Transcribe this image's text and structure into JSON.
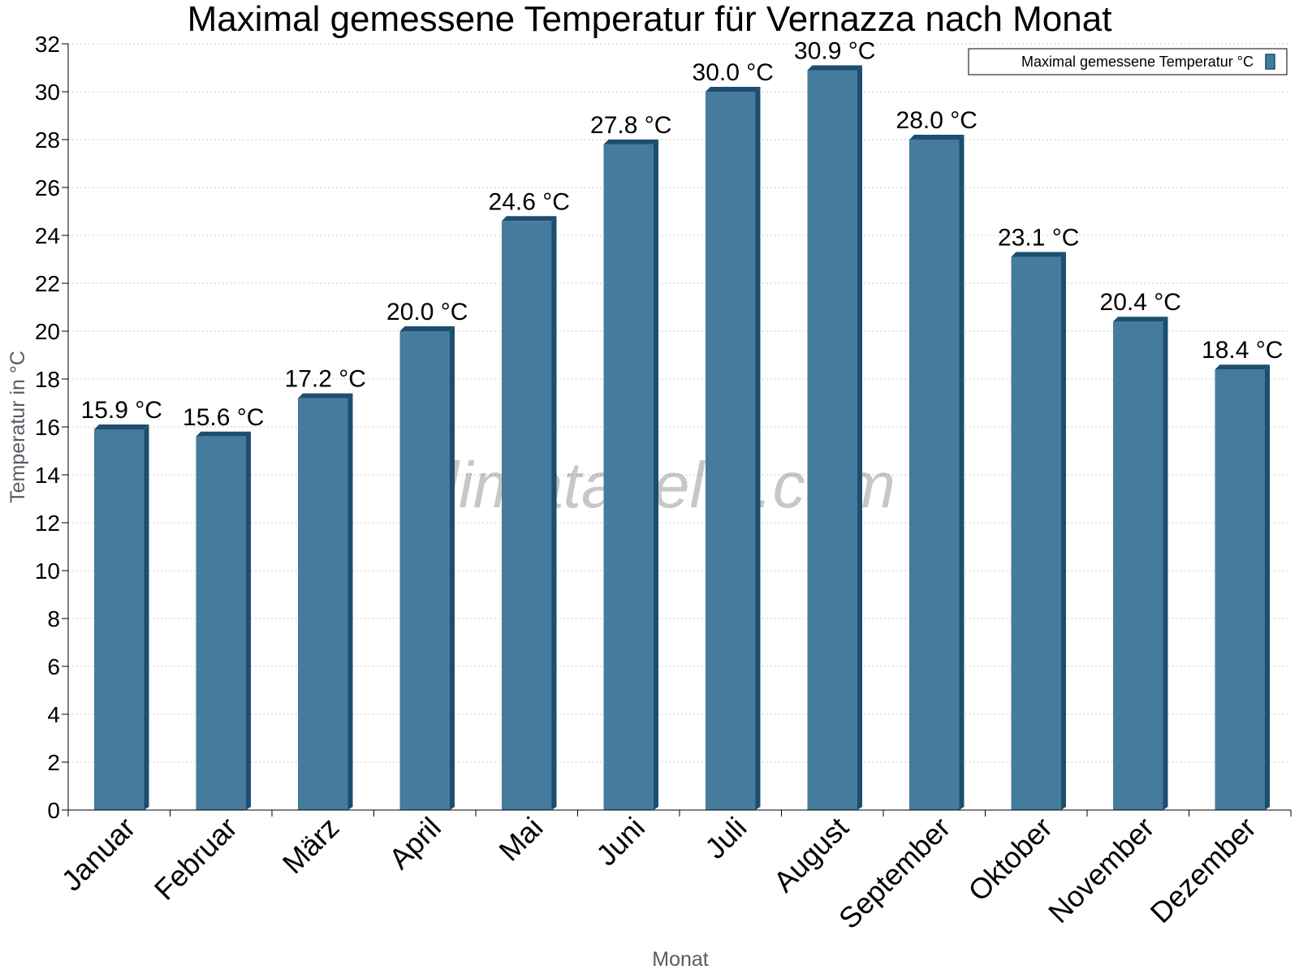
{
  "chart_data": {
    "type": "bar",
    "title": "Maximal gemessene Temperatur für Vernazza nach Monat",
    "xlabel": "Monat",
    "ylabel": "Temperatur in °C",
    "categories": [
      "Januar",
      "Februar",
      "März",
      "April",
      "Mai",
      "Juni",
      "Juli",
      "August",
      "September",
      "Oktober",
      "November",
      "Dezember"
    ],
    "series": [
      {
        "name": "Maximal gemessene Temperatur °C",
        "values": [
          15.9,
          15.6,
          17.2,
          20.0,
          24.6,
          27.8,
          30.0,
          30.9,
          28.0,
          23.1,
          20.4,
          18.4
        ],
        "labels": [
          "15.9 °C",
          "15.6 °C",
          "17.2 °C",
          "20.0 °C",
          "24.6 °C",
          "27.8 °C",
          "30.0 °C",
          "30.9 °C",
          "28.0 °C",
          "23.1 °C",
          "20.4 °C",
          "18.4 °C"
        ]
      }
    ],
    "ylim": [
      0,
      32
    ],
    "yticks": [
      0,
      2,
      4,
      6,
      8,
      10,
      12,
      14,
      16,
      18,
      20,
      22,
      24,
      26,
      28,
      30,
      32
    ],
    "grid": true,
    "legend_position": "top-right",
    "watermark": "klimatabelle.com",
    "colors": {
      "bar": "#457b9d",
      "bar_dark": "#1d4e6f",
      "grid": "#c8c8c8"
    }
  }
}
